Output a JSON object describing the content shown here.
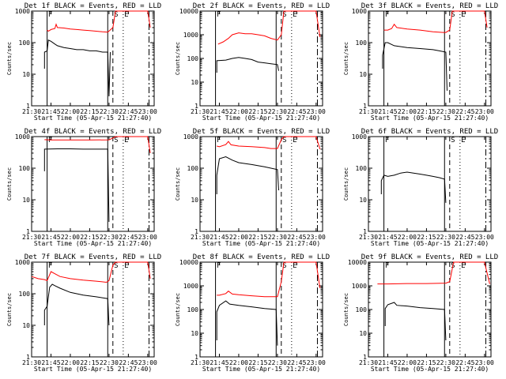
{
  "figure": {
    "colors": {
      "black_series": "#000000",
      "red_series": "#ff0000",
      "axes": "#000000"
    }
  },
  "common": {
    "xlabel": "Start Time (05-Apr-15 21:27:40)",
    "ylabel": "Counts/sec",
    "x_tick_labels": [
      "21:30",
      "21:45",
      "22:00",
      "22:15",
      "22:30",
      "22:45",
      "23:00"
    ],
    "y_tick_labels": [
      "1",
      "10",
      "100",
      "1000",
      "10000"
    ],
    "markers": {
      "F": "F",
      "S": "S",
      "E": "E"
    }
  },
  "chart_data": [
    {
      "type": "line",
      "title": "Det 1f BLACK = Events, RED = LLD",
      "ylog": true,
      "ylim": [
        1,
        1000
      ],
      "xlim": [
        "21:30",
        "23:05"
      ],
      "series": [
        {
          "color": "red",
          "points": [
            [
              "21:42",
              250
            ],
            [
              "21:43",
              230
            ],
            [
              "21:45",
              260
            ],
            [
              "21:48",
              280
            ],
            [
              "21:49",
              380
            ],
            [
              "21:50",
              300
            ],
            [
              "21:55",
              290
            ],
            [
              "22:00",
              270
            ],
            [
              "22:05",
              260
            ],
            [
              "22:10",
              250
            ],
            [
              "22:15",
              240
            ],
            [
              "22:20",
              230
            ],
            [
              "22:25",
              220
            ],
            [
              "22:29",
              215
            ],
            [
              "22:33",
              300
            ],
            [
              "22:35",
              1000
            ],
            [
              "22:50",
              1000
            ],
            [
              "23:00",
              1000
            ],
            [
              "23:02",
              300
            ]
          ]
        },
        {
          "color": "black",
          "points": [
            [
              "21:40",
              15
            ],
            [
              "21:40",
              50
            ],
            [
              "21:42",
              55
            ],
            [
              "21:43",
              120
            ],
            [
              "21:45",
              110
            ],
            [
              "21:48",
              90
            ],
            [
              "21:50",
              80
            ],
            [
              "21:55",
              70
            ],
            [
              "22:00",
              65
            ],
            [
              "22:05",
              60
            ],
            [
              "22:10",
              60
            ],
            [
              "22:15",
              55
            ],
            [
              "22:20",
              55
            ],
            [
              "22:25",
              50
            ],
            [
              "22:29",
              50
            ],
            [
              "22:30",
              2
            ],
            [
              "22:31",
              50
            ]
          ]
        }
      ]
    },
    {
      "type": "line",
      "title": "Det 2f BLACK = Events, RED = LLD",
      "ylog": true,
      "ylim": [
        1,
        10000
      ],
      "xlim": [
        "21:30",
        "23:05"
      ],
      "series": [
        {
          "color": "red",
          "points": [
            [
              "21:44",
              400
            ],
            [
              "21:48",
              500
            ],
            [
              "21:52",
              700
            ],
            [
              "21:55",
              1000
            ],
            [
              "22:00",
              1200
            ],
            [
              "22:05",
              1100
            ],
            [
              "22:10",
              1100
            ],
            [
              "22:15",
              1000
            ],
            [
              "22:20",
              900
            ],
            [
              "22:25",
              700
            ],
            [
              "22:30",
              600
            ],
            [
              "22:33",
              1000
            ],
            [
              "22:35",
              10000
            ],
            [
              "22:50",
              10000
            ],
            [
              "23:00",
              10000
            ],
            [
              "23:03",
              800
            ]
          ]
        },
        {
          "color": "black",
          "points": [
            [
              "21:43",
              25
            ],
            [
              "21:43",
              80
            ],
            [
              "21:50",
              85
            ],
            [
              "21:55",
              100
            ],
            [
              "22:00",
              110
            ],
            [
              "22:05",
              100
            ],
            [
              "22:10",
              90
            ],
            [
              "22:15",
              70
            ],
            [
              "22:20",
              65
            ],
            [
              "22:25",
              60
            ],
            [
              "22:30",
              55
            ],
            [
              "22:31",
              30
            ]
          ]
        }
      ]
    },
    {
      "type": "line",
      "title": "Det 3f BLACK = Events, RED = LLD",
      "ylog": true,
      "ylim": [
        1,
        1000
      ],
      "xlim": [
        "21:30",
        "23:05"
      ],
      "series": [
        {
          "color": "red",
          "points": [
            [
              "21:42",
              250
            ],
            [
              "21:45",
              250
            ],
            [
              "21:48",
              280
            ],
            [
              "21:50",
              380
            ],
            [
              "21:52",
              300
            ],
            [
              "22:00",
              270
            ],
            [
              "22:10",
              250
            ],
            [
              "22:20",
              220
            ],
            [
              "22:28",
              210
            ],
            [
              "22:30",
              210
            ],
            [
              "22:33",
              250
            ],
            [
              "22:35",
              1000
            ],
            [
              "22:50",
              1000
            ],
            [
              "23:00",
              1000
            ],
            [
              "23:02",
              300
            ]
          ]
        },
        {
          "color": "black",
          "points": [
            [
              "21:41",
              15
            ],
            [
              "21:41",
              40
            ],
            [
              "21:43",
              100
            ],
            [
              "21:45",
              100
            ],
            [
              "21:50",
              80
            ],
            [
              "22:00",
              70
            ],
            [
              "22:10",
              65
            ],
            [
              "22:20",
              60
            ],
            [
              "22:25",
              55
            ],
            [
              "22:30",
              50
            ],
            [
              "22:31",
              3
            ]
          ]
        }
      ]
    },
    {
      "type": "line",
      "title": "Det 4f BLACK = Events, RED = LLD",
      "ylog": true,
      "ylim": [
        1,
        1000
      ],
      "xlim": [
        "21:30",
        "23:05"
      ],
      "series": [
        {
          "color": "red",
          "points": [
            [
              "21:40",
              800
            ],
            [
              "21:45",
              780
            ],
            [
              "22:00",
              780
            ],
            [
              "22:15",
              780
            ],
            [
              "22:30",
              790
            ],
            [
              "22:33",
              900
            ],
            [
              "22:35",
              1000
            ],
            [
              "22:50",
              1000
            ],
            [
              "23:00",
              1000
            ],
            [
              "23:02",
              300
            ]
          ]
        },
        {
          "color": "black",
          "points": [
            [
              "21:40",
              80
            ],
            [
              "21:40",
              400
            ],
            [
              "21:50",
              410
            ],
            [
              "22:00",
              410
            ],
            [
              "22:10",
              400
            ],
            [
              "22:20",
              400
            ],
            [
              "22:29",
              400
            ],
            [
              "22:30",
              2
            ]
          ]
        }
      ]
    },
    {
      "type": "line",
      "title": "Det 5f BLACK = Events, RED = LLD",
      "ylog": true,
      "ylim": [
        1,
        1000
      ],
      "xlim": [
        "21:30",
        "23:05"
      ],
      "series": [
        {
          "color": "red",
          "points": [
            [
              "21:43",
              500
            ],
            [
              "21:45",
              480
            ],
            [
              "21:50",
              560
            ],
            [
              "21:52",
              700
            ],
            [
              "21:54",
              550
            ],
            [
              "22:00",
              500
            ],
            [
              "22:10",
              480
            ],
            [
              "22:20",
              450
            ],
            [
              "22:25",
              420
            ],
            [
              "22:30",
              420
            ],
            [
              "22:33",
              800
            ],
            [
              "22:35",
              1000
            ],
            [
              "22:50",
              1000
            ],
            [
              "23:00",
              1000
            ],
            [
              "23:03",
              400
            ]
          ]
        },
        {
          "color": "black",
          "points": [
            [
              "21:43",
              15
            ],
            [
              "21:43",
              60
            ],
            [
              "21:45",
              200
            ],
            [
              "21:50",
              230
            ],
            [
              "21:55",
              180
            ],
            [
              "22:00",
              150
            ],
            [
              "22:10",
              130
            ],
            [
              "22:20",
              110
            ],
            [
              "22:30",
              90
            ],
            [
              "22:31",
              20
            ]
          ]
        }
      ]
    },
    {
      "type": "line",
      "title": "Det 6f BLACK = Events, RED = LLD",
      "ylog": true,
      "ylim": [
        1,
        1000
      ],
      "xlim": [
        "21:30",
        "23:05"
      ],
      "series": [
        {
          "color": "black",
          "points": [
            [
              "21:40",
              15
            ],
            [
              "21:40",
              40
            ],
            [
              "21:42",
              60
            ],
            [
              "21:45",
              55
            ],
            [
              "21:50",
              60
            ],
            [
              "21:55",
              70
            ],
            [
              "22:00",
              75
            ],
            [
              "22:05",
              70
            ],
            [
              "22:10",
              65
            ],
            [
              "22:15",
              60
            ],
            [
              "22:20",
              55
            ],
            [
              "22:25",
              50
            ],
            [
              "22:29",
              45
            ],
            [
              "22:30",
              8
            ]
          ]
        }
      ]
    },
    {
      "type": "line",
      "title": "Det 7f BLACK = Events, RED = LLD",
      "ylog": true,
      "ylim": [
        1,
        1000
      ],
      "xlim": [
        "21:30",
        "23:05"
      ],
      "series": [
        {
          "color": "red",
          "points": [
            [
              "21:30",
              350
            ],
            [
              "21:35",
              300
            ],
            [
              "21:40",
              280
            ],
            [
              "21:42",
              260
            ],
            [
              "21:45",
              500
            ],
            [
              "21:48",
              430
            ],
            [
              "21:52",
              350
            ],
            [
              "22:00",
              300
            ],
            [
              "22:10",
              270
            ],
            [
              "22:20",
              250
            ],
            [
              "22:28",
              230
            ],
            [
              "22:30",
              260
            ],
            [
              "22:33",
              800
            ],
            [
              "22:35",
              1000
            ],
            [
              "22:50",
              1000
            ],
            [
              "23:00",
              1000
            ],
            [
              "23:02",
              300
            ]
          ]
        },
        {
          "color": "black",
          "points": [
            [
              "21:40",
              10
            ],
            [
              "21:40",
              30
            ],
            [
              "21:42",
              40
            ],
            [
              "21:44",
              160
            ],
            [
              "21:46",
              200
            ],
            [
              "21:48",
              180
            ],
            [
              "21:52",
              150
            ],
            [
              "22:00",
              110
            ],
            [
              "22:10",
              90
            ],
            [
              "22:20",
              80
            ],
            [
              "22:29",
              70
            ],
            [
              "22:30",
              10
            ]
          ]
        }
      ]
    },
    {
      "type": "line",
      "title": "Det 8f BLACK = Events, RED = LLD",
      "ylog": true,
      "ylim": [
        1,
        10000
      ],
      "xlim": [
        "21:30",
        "23:05"
      ],
      "series": [
        {
          "color": "red",
          "points": [
            [
              "21:43",
              400
            ],
            [
              "21:45",
              400
            ],
            [
              "21:50",
              470
            ],
            [
              "21:52",
              600
            ],
            [
              "21:55",
              450
            ],
            [
              "22:00",
              420
            ],
            [
              "22:10",
              380
            ],
            [
              "22:20",
              350
            ],
            [
              "22:30",
              350
            ],
            [
              "22:33",
              1500
            ],
            [
              "22:35",
              10000
            ],
            [
              "22:50",
              10000
            ],
            [
              "23:00",
              10000
            ],
            [
              "23:03",
              800
            ]
          ]
        },
        {
          "color": "black",
          "points": [
            [
              "21:43",
              5
            ],
            [
              "21:43",
              80
            ],
            [
              "21:45",
              150
            ],
            [
              "21:50",
              230
            ],
            [
              "21:53",
              170
            ],
            [
              "22:00",
              150
            ],
            [
              "22:10",
              130
            ],
            [
              "22:20",
              110
            ],
            [
              "22:29",
              100
            ],
            [
              "22:30",
              3
            ]
          ]
        }
      ]
    },
    {
      "type": "line",
      "title": "Det 9f BLACK = Events, RED = LLD",
      "ylog": true,
      "ylim": [
        1,
        10000
      ],
      "xlim": [
        "21:30",
        "23:05"
      ],
      "series": [
        {
          "color": "red",
          "points": [
            [
              "21:37",
              1200
            ],
            [
              "21:45",
              1200
            ],
            [
              "22:00",
              1250
            ],
            [
              "22:15",
              1250
            ],
            [
              "22:30",
              1300
            ],
            [
              "22:33",
              1500
            ],
            [
              "22:36",
              10000
            ],
            [
              "22:50",
              10000
            ],
            [
              "23:00",
              10000
            ],
            [
              "23:04",
              1200
            ]
          ]
        },
        {
          "color": "black",
          "points": [
            [
              "21:43",
              20
            ],
            [
              "21:43",
              110
            ],
            [
              "21:45",
              160
            ],
            [
              "21:50",
              200
            ],
            [
              "21:52",
              150
            ],
            [
              "22:00",
              140
            ],
            [
              "22:10",
              120
            ],
            [
              "22:20",
              110
            ],
            [
              "22:29",
              100
            ],
            [
              "22:30",
              5
            ]
          ]
        }
      ]
    }
  ]
}
